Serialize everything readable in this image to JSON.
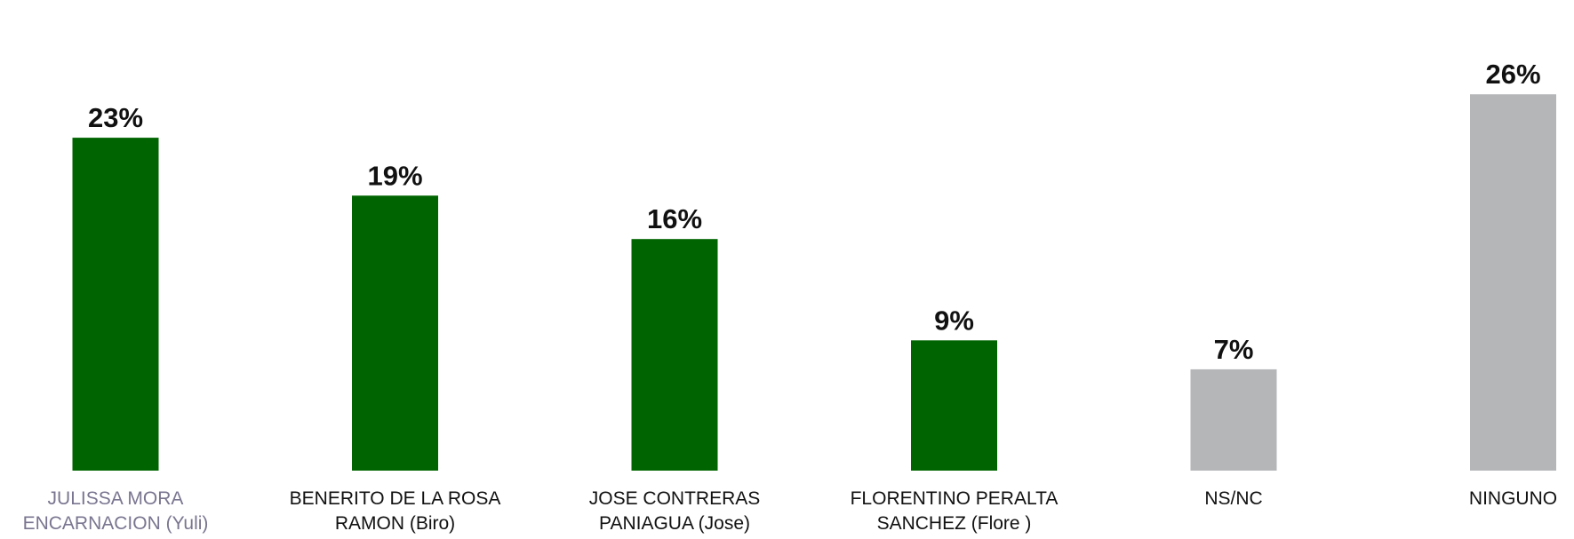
{
  "chart_data": {
    "type": "bar",
    "categories": [
      "JULISSA MORA\nENCARNACION (Yuli)",
      "BENERITO DE LA ROSA\nRAMON (Biro)",
      "JOSE CONTRERAS\nPANIAGUA (Jose)",
      "FLORENTINO PERALTA\nSANCHEZ (Flore )",
      "NS/NC",
      "NINGUNO"
    ],
    "values": [
      23,
      19,
      16,
      9,
      7,
      26
    ],
    "value_labels": [
      "23%",
      "19%",
      "16%",
      "9%",
      "7%",
      "26%"
    ],
    "colors": [
      "#006400",
      "#006400",
      "#006400",
      "#006400",
      "#b4b6b8",
      "#b4b6b8"
    ]
  }
}
